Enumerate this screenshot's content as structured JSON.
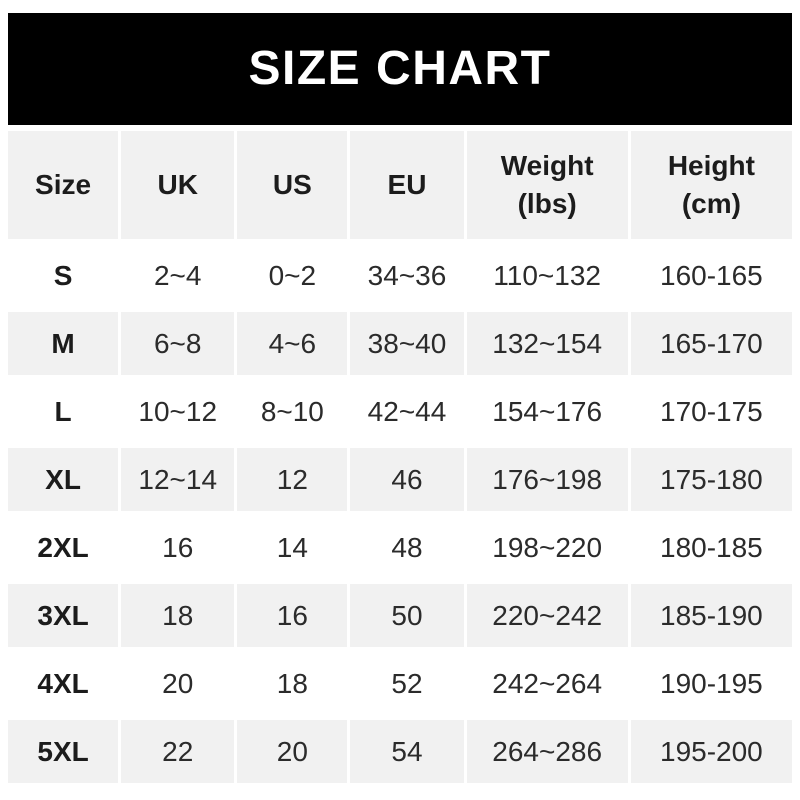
{
  "banner": {
    "title": "SIZE CHART"
  },
  "chart_data": {
    "type": "table",
    "title": "SIZE CHART",
    "columns": [
      {
        "key": "size",
        "line1": "Size",
        "line2": ""
      },
      {
        "key": "uk",
        "line1": "UK",
        "line2": ""
      },
      {
        "key": "us",
        "line1": "US",
        "line2": ""
      },
      {
        "key": "eu",
        "line1": "EU",
        "line2": ""
      },
      {
        "key": "weight",
        "line1": "Weight",
        "line2": "(lbs)"
      },
      {
        "key": "height",
        "line1": "Height",
        "line2": "(cm)"
      }
    ],
    "rows": [
      {
        "size": "S",
        "uk": "2~4",
        "us": "0~2",
        "eu": "34~36",
        "weight": "110~132",
        "height": "160-165"
      },
      {
        "size": "M",
        "uk": "6~8",
        "us": "4~6",
        "eu": "38~40",
        "weight": "132~154",
        "height": "165-170"
      },
      {
        "size": "L",
        "uk": "10~12",
        "us": "8~10",
        "eu": "42~44",
        "weight": "154~176",
        "height": "170-175"
      },
      {
        "size": "XL",
        "uk": "12~14",
        "us": "12",
        "eu": "46",
        "weight": "176~198",
        "height": "175-180"
      },
      {
        "size": "2XL",
        "uk": "16",
        "us": "14",
        "eu": "48",
        "weight": "198~220",
        "height": "180-185"
      },
      {
        "size": "3XL",
        "uk": "18",
        "us": "16",
        "eu": "50",
        "weight": "220~242",
        "height": "185-190"
      },
      {
        "size": "4XL",
        "uk": "20",
        "us": "18",
        "eu": "52",
        "weight": "242~264",
        "height": "190-195"
      },
      {
        "size": "5XL",
        "uk": "22",
        "us": "20",
        "eu": "54",
        "weight": "264~286",
        "height": "195-200"
      }
    ],
    "colors": {
      "banner_bg": "#000000",
      "banner_text": "#ffffff",
      "row_alt_bg": "#f1f1f1",
      "row_bg": "#ffffff",
      "header_text": "#1c1c1c",
      "cell_text": "#2b2b2b"
    }
  }
}
